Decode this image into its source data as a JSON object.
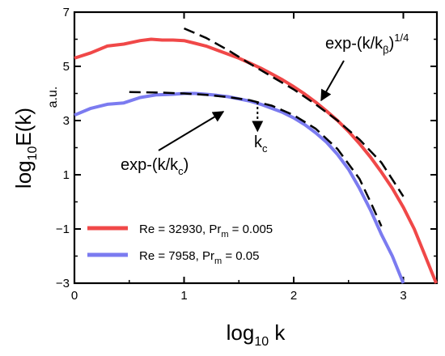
{
  "chart_data": {
    "type": "line",
    "xlabel": {
      "main": "log",
      "sub": "10",
      "tail": " k"
    },
    "ylabel": {
      "main": "log",
      "sub": "10",
      "tail": "E(k)"
    },
    "yunit": "a.u.",
    "xlim": [
      0,
      3.35
    ],
    "ylim": [
      -3,
      7
    ],
    "xticks": [
      0,
      1,
      2,
      3
    ],
    "xtick_labels": [
      "0",
      "1",
      "2",
      "3"
    ],
    "yticks": [
      -3,
      -1,
      1,
      3,
      5,
      7
    ],
    "ytick_labels": [
      "−3",
      "−1",
      "1",
      "3",
      "5",
      "7"
    ],
    "series": [
      {
        "name": "Re = 32930,  Pr_m = 0.005",
        "label": {
          "a": "Re = 32930, Pr",
          "sub": "m",
          "b": " = 0.005"
        },
        "color": "#f04848",
        "x": [
          0,
          0.15,
          0.3,
          0.45,
          0.6,
          0.7,
          0.8,
          0.9,
          1.0,
          1.1,
          1.2,
          1.3,
          1.4,
          1.5,
          1.6,
          1.7,
          1.8,
          1.9,
          2.0,
          2.1,
          2.2,
          2.3,
          2.4,
          2.5,
          2.6,
          2.7,
          2.8,
          2.9,
          3.0,
          3.1,
          3.2,
          3.3
        ],
        "y": [
          5.3,
          5.5,
          5.75,
          5.82,
          5.95,
          6.0,
          5.97,
          5.97,
          5.95,
          5.85,
          5.75,
          5.6,
          5.45,
          5.3,
          5.12,
          4.93,
          4.72,
          4.5,
          4.25,
          3.98,
          3.68,
          3.35,
          3.0,
          2.6,
          2.15,
          1.65,
          1.1,
          0.5,
          -0.2,
          -1.0,
          -2.0,
          -3.0
        ]
      },
      {
        "name": "Re = 7958,  Pr_m = 0.05",
        "label": {
          "a": "Re = 7958,   Pr",
          "sub": "m",
          "b": " = 0.05"
        },
        "color": "#7b7bf0",
        "x": [
          0,
          0.15,
          0.3,
          0.45,
          0.6,
          0.75,
          0.9,
          1.0,
          1.1,
          1.2,
          1.3,
          1.4,
          1.5,
          1.6,
          1.7,
          1.8,
          1.9,
          2.0,
          2.1,
          2.2,
          2.3,
          2.4,
          2.5,
          2.6,
          2.7,
          2.8,
          2.9,
          3.0
        ],
        "y": [
          3.2,
          3.45,
          3.6,
          3.65,
          3.85,
          3.95,
          3.97,
          4.0,
          4.0,
          3.97,
          3.93,
          3.88,
          3.8,
          3.72,
          3.6,
          3.45,
          3.3,
          3.1,
          2.85,
          2.55,
          2.2,
          1.75,
          1.2,
          0.5,
          -0.3,
          -1.2,
          -2.0,
          -3.0
        ]
      }
    ],
    "fits": [
      {
        "label": {
          "a": "exp-(k/k",
          "sub": "β",
          "b": ")",
          "sup": "1/4"
        },
        "x": [
          1.0,
          1.2,
          1.4,
          1.6,
          1.8,
          2.0,
          2.2,
          2.4,
          2.6,
          2.8,
          3.0
        ],
        "y": [
          6.4,
          6.05,
          5.6,
          5.1,
          4.62,
          4.15,
          3.6,
          3.0,
          2.3,
          1.45,
          0.2
        ]
      },
      {
        "label": {
          "a": "exp-(k/k",
          "sub": "c",
          "b": ")"
        },
        "x": [
          0.5,
          0.8,
          1.0,
          1.2,
          1.4,
          1.6,
          1.8,
          2.0,
          2.2,
          2.4,
          2.6,
          2.7,
          2.8
        ],
        "y": [
          4.05,
          4.03,
          4.0,
          3.95,
          3.87,
          3.75,
          3.55,
          3.2,
          2.7,
          1.95,
          0.85,
          0.0,
          -0.9
        ]
      }
    ],
    "marker": {
      "label": "k",
      "sub": "c",
      "x": 1.67
    }
  }
}
